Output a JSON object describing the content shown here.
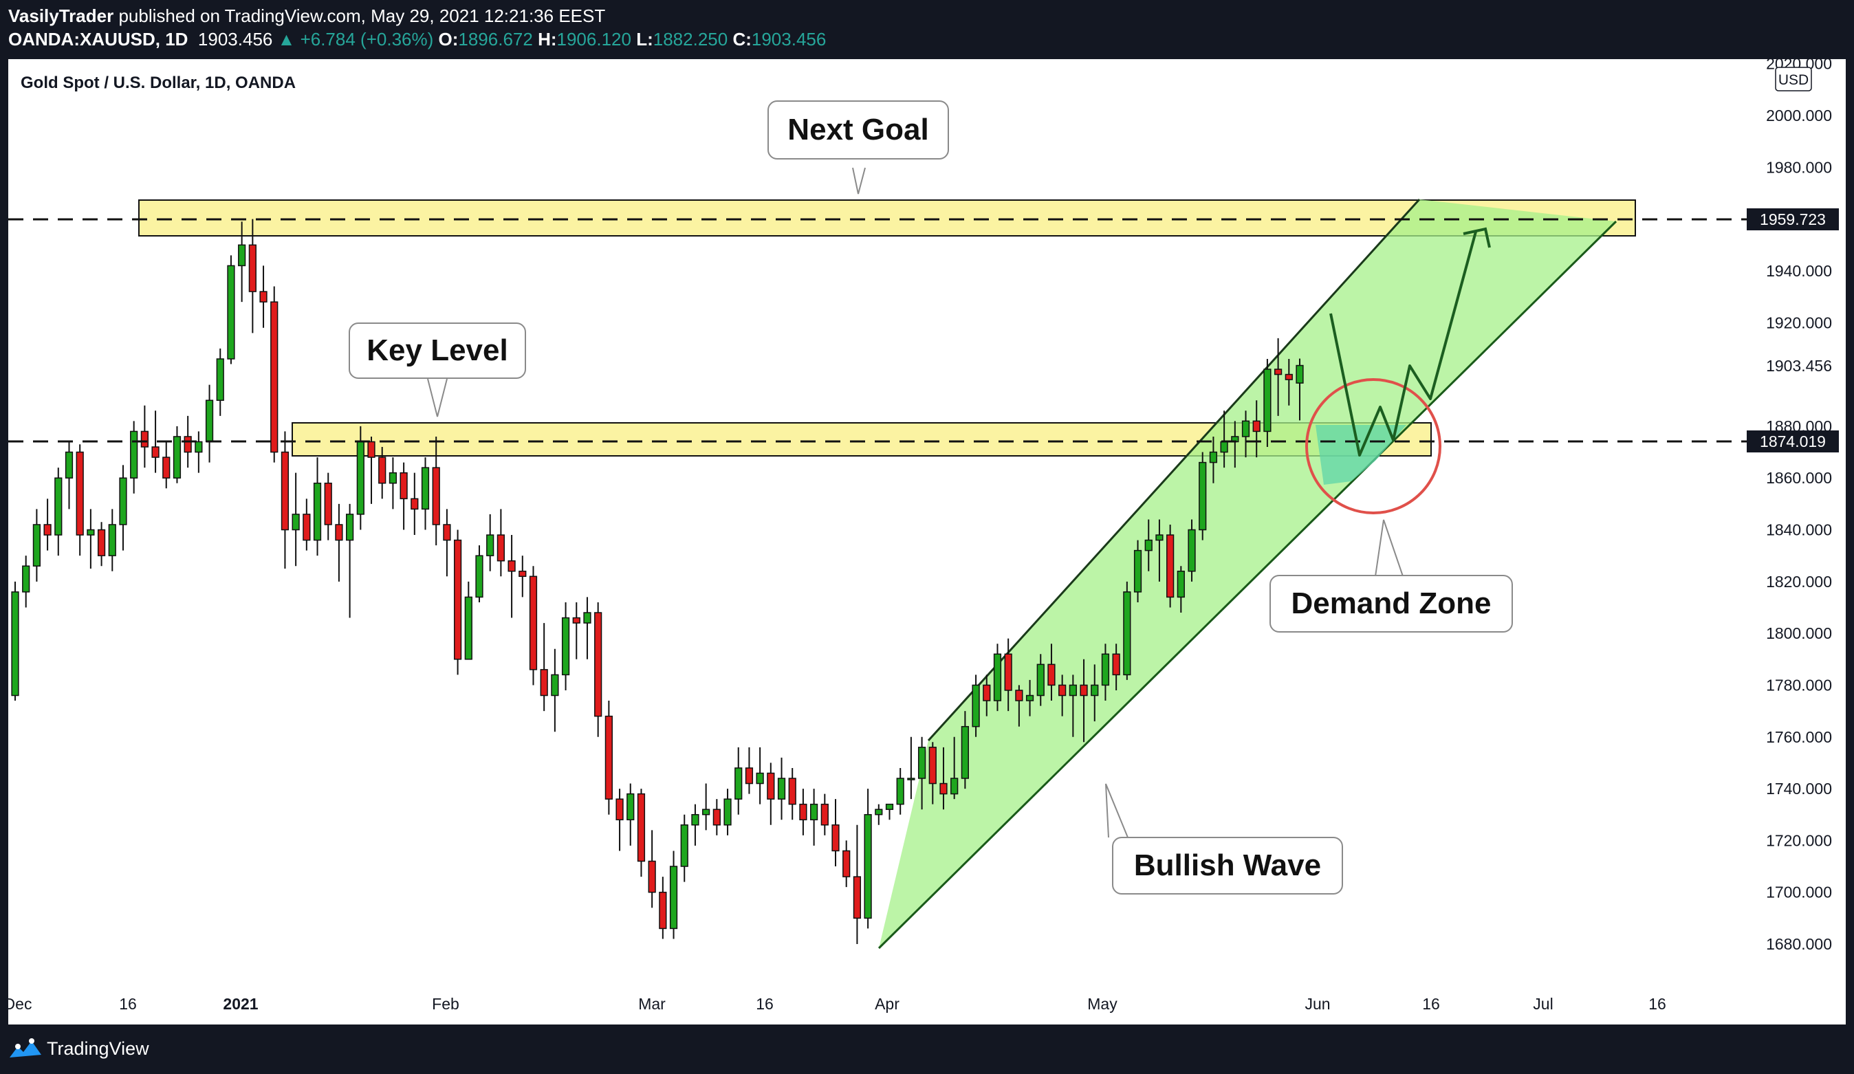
{
  "header": {
    "publisher": "VasilyTrader",
    "published_text": "published on TradingView.com, May 29, 2021 12:21:36 EEST",
    "symbol": "OANDA:XAUUSD, 1D",
    "last": "1903.456",
    "change": "▲ +6.784 (+0.36%)",
    "open_label": "O:",
    "open": "1896.672",
    "high_label": "H:",
    "high": "1906.120",
    "low_label": "L:",
    "low": "1882.250",
    "close_label": "C:",
    "close": "1903.456"
  },
  "chart_title": "Gold Spot / U.S. Dollar, 1D, OANDA",
  "currency_label": "USD",
  "annotations": {
    "next_goal": "Next Goal",
    "key_level": "Key Level",
    "demand_zone": "Demand Zone",
    "bullish_wave": "Bullish Wave"
  },
  "price_tags": {
    "resistance": "1959.723",
    "support": "1874.019",
    "current": "1903.456"
  },
  "footer": {
    "brand": "TradingView"
  },
  "colors": {
    "bull": "#26a69a",
    "bull_candle": "#1ea61e",
    "bear_candle": "#e01c1c",
    "zone_fill": "#fbf3a2",
    "channel_fill": "#a6f08a",
    "circle": "#e0504a",
    "frame_bg": "#131722"
  },
  "chart_data": {
    "type": "candlestick",
    "title": "Gold Spot / U.S. Dollar, 1D, OANDA",
    "currency": "USD",
    "ylim": [
      1675,
      2022
    ],
    "y_ticks": [
      2020,
      2000,
      1980,
      1940,
      1920,
      1880,
      1860,
      1840,
      1820,
      1800,
      1780,
      1760,
      1740,
      1720,
      1700,
      1680
    ],
    "x_ticks": [
      "Dec",
      "16",
      "2021",
      "Feb",
      "Mar",
      "16",
      "Apr",
      "May",
      "Jun",
      "16",
      "Jul",
      "16"
    ],
    "horizontal_levels": [
      1959.723,
      1874.019
    ],
    "ohlc": [
      [
        1776,
        1820,
        1774,
        1816
      ],
      [
        1816,
        1830,
        1810,
        1826
      ],
      [
        1826,
        1848,
        1820,
        1842
      ],
      [
        1842,
        1852,
        1832,
        1838
      ],
      [
        1838,
        1864,
        1830,
        1860
      ],
      [
        1860,
        1874,
        1848,
        1870
      ],
      [
        1870,
        1873,
        1830,
        1838
      ],
      [
        1838,
        1848,
        1825,
        1840
      ],
      [
        1840,
        1843,
        1826,
        1830
      ],
      [
        1830,
        1848,
        1824,
        1842
      ],
      [
        1842,
        1865,
        1832,
        1860
      ],
      [
        1860,
        1882,
        1854,
        1878
      ],
      [
        1878,
        1888,
        1864,
        1872
      ],
      [
        1872,
        1886,
        1862,
        1868
      ],
      [
        1868,
        1874,
        1856,
        1860
      ],
      [
        1860,
        1880,
        1858,
        1876
      ],
      [
        1876,
        1884,
        1864,
        1870
      ],
      [
        1870,
        1878,
        1862,
        1874
      ],
      [
        1874,
        1896,
        1866,
        1890
      ],
      [
        1890,
        1910,
        1884,
        1906
      ],
      [
        1906,
        1946,
        1904,
        1942
      ],
      [
        1942,
        1959,
        1928,
        1950
      ],
      [
        1950,
        1960,
        1916,
        1932
      ],
      [
        1932,
        1942,
        1918,
        1928
      ],
      [
        1928,
        1934,
        1866,
        1870
      ],
      [
        1870,
        1878,
        1825,
        1840
      ],
      [
        1840,
        1862,
        1826,
        1846
      ],
      [
        1846,
        1852,
        1832,
        1836
      ],
      [
        1836,
        1868,
        1830,
        1858
      ],
      [
        1858,
        1862,
        1836,
        1842
      ],
      [
        1842,
        1850,
        1820,
        1836
      ],
      [
        1836,
        1850,
        1806,
        1846
      ],
      [
        1846,
        1880,
        1840,
        1874
      ],
      [
        1874,
        1876,
        1850,
        1868
      ],
      [
        1868,
        1872,
        1852,
        1858
      ],
      [
        1858,
        1868,
        1848,
        1862
      ],
      [
        1862,
        1866,
        1840,
        1852
      ],
      [
        1852,
        1862,
        1838,
        1848
      ],
      [
        1848,
        1868,
        1840,
        1864
      ],
      [
        1864,
        1876,
        1834,
        1842
      ],
      [
        1842,
        1848,
        1822,
        1836
      ],
      [
        1836,
        1840,
        1784,
        1790
      ],
      [
        1790,
        1820,
        1790,
        1814
      ],
      [
        1814,
        1834,
        1812,
        1830
      ],
      [
        1830,
        1846,
        1824,
        1838
      ],
      [
        1838,
        1848,
        1822,
        1828
      ],
      [
        1828,
        1838,
        1806,
        1824
      ],
      [
        1824,
        1830,
        1814,
        1822
      ],
      [
        1822,
        1826,
        1780,
        1786
      ],
      [
        1786,
        1804,
        1770,
        1776
      ],
      [
        1776,
        1794,
        1762,
        1784
      ],
      [
        1784,
        1812,
        1778,
        1806
      ],
      [
        1806,
        1812,
        1790,
        1804
      ],
      [
        1804,
        1814,
        1790,
        1808
      ],
      [
        1808,
        1812,
        1760,
        1768
      ],
      [
        1768,
        1774,
        1730,
        1736
      ],
      [
        1736,
        1740,
        1716,
        1728
      ],
      [
        1728,
        1742,
        1718,
        1738
      ],
      [
        1738,
        1740,
        1706,
        1712
      ],
      [
        1712,
        1724,
        1694,
        1700
      ],
      [
        1700,
        1706,
        1682,
        1686
      ],
      [
        1686,
        1716,
        1682,
        1710
      ],
      [
        1710,
        1730,
        1704,
        1726
      ],
      [
        1726,
        1734,
        1718,
        1730
      ],
      [
        1730,
        1742,
        1724,
        1732
      ],
      [
        1732,
        1736,
        1722,
        1726
      ],
      [
        1726,
        1740,
        1722,
        1736
      ],
      [
        1736,
        1756,
        1730,
        1748
      ],
      [
        1748,
        1756,
        1738,
        1742
      ],
      [
        1742,
        1756,
        1734,
        1746
      ],
      [
        1746,
        1750,
        1726,
        1736
      ],
      [
        1736,
        1752,
        1728,
        1744
      ],
      [
        1744,
        1748,
        1728,
        1734
      ],
      [
        1734,
        1740,
        1722,
        1728
      ],
      [
        1728,
        1740,
        1718,
        1734
      ],
      [
        1734,
        1738,
        1722,
        1726
      ],
      [
        1726,
        1736,
        1710,
        1716
      ],
      [
        1716,
        1720,
        1702,
        1706
      ],
      [
        1706,
        1726,
        1680,
        1690
      ],
      [
        1690,
        1740,
        1686,
        1730
      ],
      [
        1730,
        1734,
        1726,
        1732
      ],
      [
        1732,
        1734,
        1728,
        1734
      ],
      [
        1734,
        1748,
        1730,
        1744
      ],
      [
        1744,
        1760,
        1736,
        1744
      ],
      [
        1744,
        1760,
        1732,
        1756
      ],
      [
        1756,
        1758,
        1734,
        1742
      ],
      [
        1742,
        1756,
        1732,
        1738
      ],
      [
        1738,
        1760,
        1736,
        1744
      ],
      [
        1744,
        1770,
        1740,
        1764
      ],
      [
        1764,
        1784,
        1760,
        1780
      ],
      [
        1780,
        1784,
        1768,
        1774
      ],
      [
        1774,
        1796,
        1770,
        1792
      ],
      [
        1792,
        1798,
        1770,
        1778
      ],
      [
        1778,
        1780,
        1764,
        1774
      ],
      [
        1774,
        1782,
        1768,
        1776
      ],
      [
        1776,
        1792,
        1772,
        1788
      ],
      [
        1788,
        1796,
        1774,
        1780
      ],
      [
        1780,
        1784,
        1768,
        1776
      ],
      [
        1776,
        1784,
        1760,
        1780
      ],
      [
        1780,
        1790,
        1758,
        1776
      ],
      [
        1776,
        1788,
        1766,
        1780
      ],
      [
        1780,
        1796,
        1774,
        1792
      ],
      [
        1792,
        1796,
        1778,
        1784
      ],
      [
        1784,
        1820,
        1782,
        1816
      ],
      [
        1816,
        1836,
        1812,
        1832
      ],
      [
        1832,
        1844,
        1824,
        1836
      ],
      [
        1836,
        1844,
        1820,
        1838
      ],
      [
        1838,
        1842,
        1810,
        1814
      ],
      [
        1814,
        1826,
        1808,
        1824
      ],
      [
        1824,
        1844,
        1820,
        1840
      ],
      [
        1840,
        1870,
        1836,
        1866
      ],
      [
        1866,
        1876,
        1858,
        1870
      ],
      [
        1870,
        1886,
        1864,
        1874
      ],
      [
        1874,
        1882,
        1864,
        1876
      ],
      [
        1876,
        1886,
        1868,
        1882
      ],
      [
        1882,
        1890,
        1868,
        1878
      ],
      [
        1878,
        1906,
        1872,
        1902
      ],
      [
        1902,
        1914,
        1884,
        1900
      ],
      [
        1900,
        1906,
        1888,
        1898
      ],
      [
        1896.672,
        1906.12,
        1882.25,
        1903.456
      ]
    ]
  }
}
